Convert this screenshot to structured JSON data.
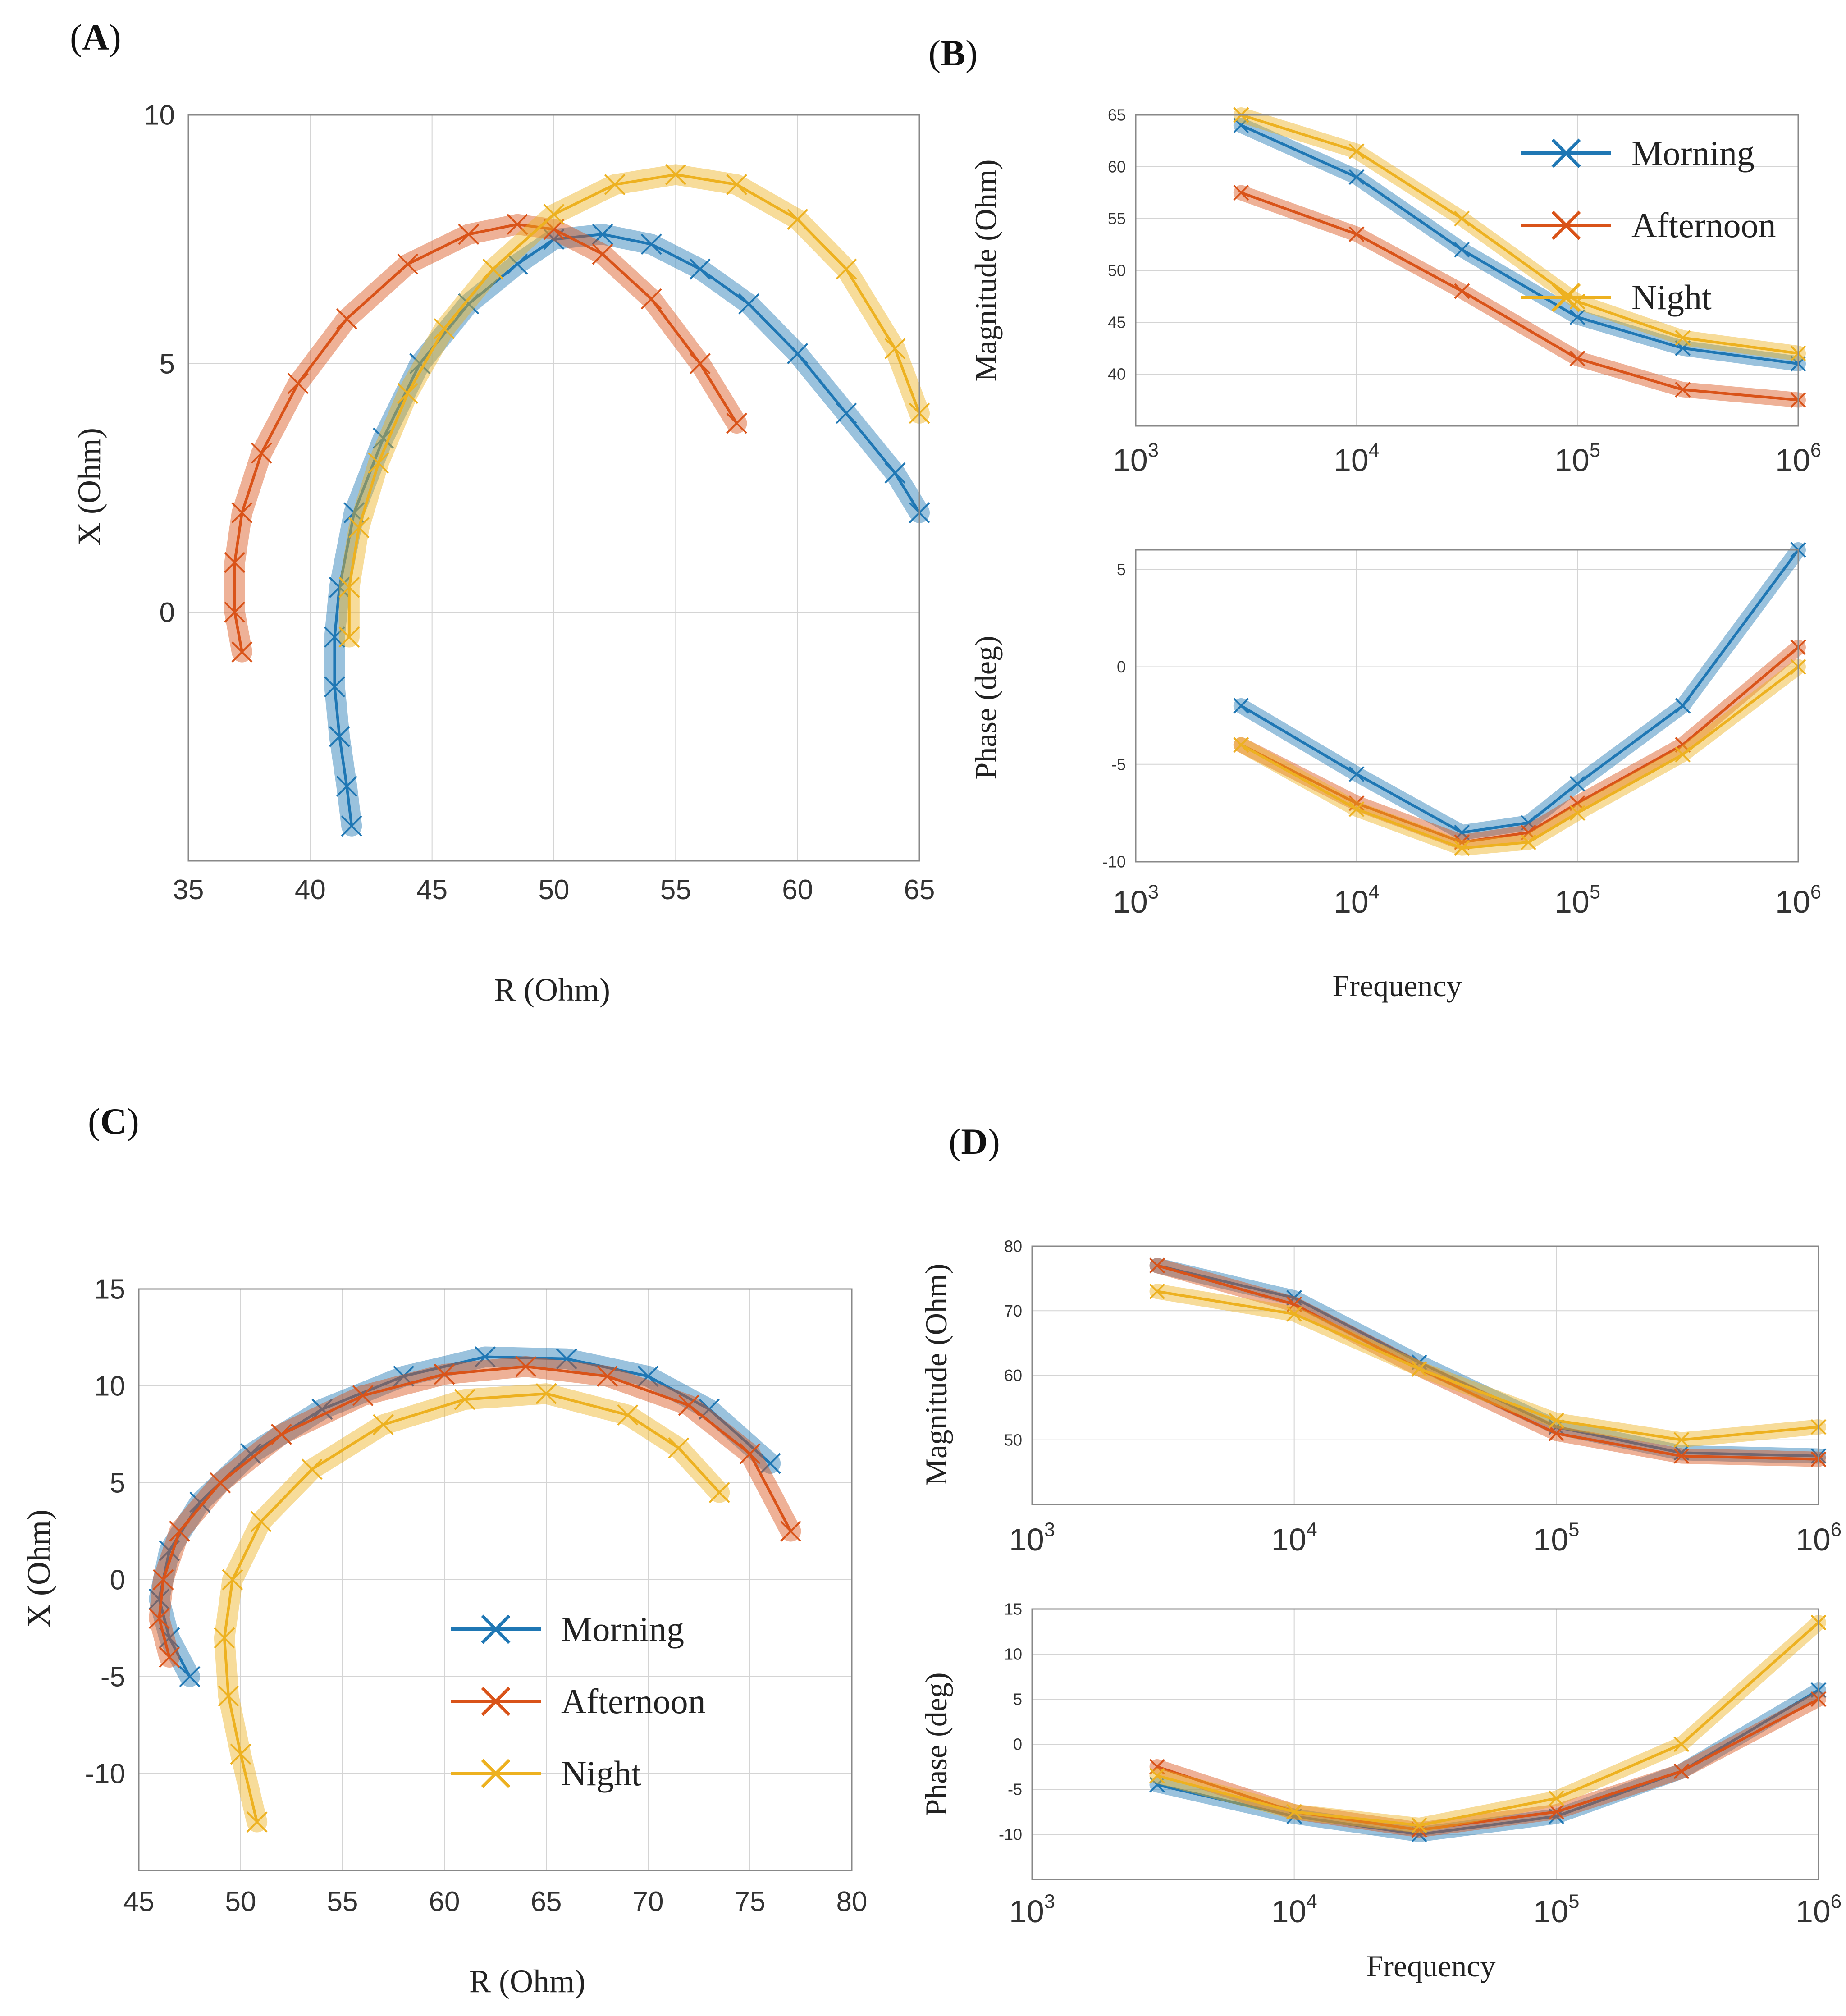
{
  "colors": {
    "morning": "#1f77b4",
    "afternoon": "#d95319",
    "night": "#edb120"
  },
  "panels": {
    "A": "A",
    "B": "B",
    "C": "C",
    "D": "D"
  },
  "chart_data": [
    {
      "id": "A",
      "type": "scatter",
      "title": "",
      "xlabel": "R (Ohm)",
      "ylabel": "X (Ohm)",
      "xlim": [
        35,
        65
      ],
      "ylim": [
        -5,
        10
      ],
      "xticks": [
        "35",
        "40",
        "45",
        "50",
        "55",
        "60",
        "65"
      ],
      "yticks": [
        "0",
        "5",
        "10"
      ],
      "series": [
        {
          "name": "Morning",
          "color": "#1f77b4",
          "x": [
            41.7,
            41.5,
            41.2,
            41,
            41,
            41.2,
            41.8,
            43,
            44.5,
            46.5,
            48.5,
            50,
            52,
            54,
            56,
            58,
            60,
            62,
            64,
            65
          ],
          "y": [
            -4.3,
            -3.5,
            -2.5,
            -1.5,
            -0.5,
            0.5,
            2,
            3.5,
            5,
            6.2,
            7,
            7.5,
            7.6,
            7.4,
            6.9,
            6.2,
            5.2,
            4,
            2.8,
            2
          ]
        },
        {
          "name": "Afternoon",
          "color": "#d95319",
          "x": [
            37.2,
            36.9,
            36.9,
            37.2,
            38,
            39.5,
            41.5,
            44,
            46.5,
            48.5,
            50,
            52,
            54,
            56,
            57.5
          ],
          "y": [
            -0.8,
            0,
            1,
            2,
            3.2,
            4.6,
            5.9,
            7,
            7.6,
            7.8,
            7.7,
            7.2,
            6.3,
            5,
            3.8
          ]
        },
        {
          "name": "Night",
          "color": "#edb120",
          "x": [
            41.6,
            41.6,
            42,
            42.8,
            44,
            45.5,
            47.5,
            50,
            52.5,
            55,
            57.5,
            60,
            62,
            64,
            65
          ],
          "y": [
            -0.5,
            0.5,
            1.7,
            3,
            4.4,
            5.7,
            6.9,
            8,
            8.6,
            8.8,
            8.6,
            7.9,
            6.9,
            5.3,
            4
          ]
        }
      ]
    },
    {
      "id": "B1",
      "type": "line",
      "xscale": "log",
      "xlabel": "",
      "ylabel": "Magnitude (Ohm)",
      "xlim": [
        1000,
        1000000
      ],
      "ylim": [
        35,
        65
      ],
      "xticks": [
        {
          "base": "10",
          "exp": "3"
        },
        {
          "base": "10",
          "exp": "4"
        },
        {
          "base": "10",
          "exp": "5"
        },
        {
          "base": "10",
          "exp": "6"
        }
      ],
      "yticks": [
        "40",
        "45",
        "50",
        "55",
        "60",
        "65"
      ],
      "legend": "top-right",
      "series": [
        {
          "name": "Morning",
          "color": "#1f77b4",
          "x": [
            3000,
            10000,
            30000,
            100000,
            300000,
            1000000
          ],
          "y": [
            64,
            59,
            52,
            45.5,
            42.5,
            41
          ]
        },
        {
          "name": "Afternoon",
          "color": "#d95319",
          "x": [
            3000,
            10000,
            30000,
            100000,
            300000,
            1000000
          ],
          "y": [
            57.5,
            53.5,
            48,
            41.5,
            38.5,
            37.5
          ]
        },
        {
          "name": "Night",
          "color": "#edb120",
          "x": [
            3000,
            10000,
            30000,
            100000,
            300000,
            1000000
          ],
          "y": [
            65,
            61.5,
            55,
            47,
            43.5,
            42
          ]
        }
      ]
    },
    {
      "id": "B2",
      "type": "line",
      "xscale": "log",
      "xlabel": "Frequency",
      "ylabel": "Phase (deg)",
      "xlim": [
        1000,
        1000000
      ],
      "ylim": [
        -10,
        6
      ],
      "xticks": [
        {
          "base": "10",
          "exp": "3"
        },
        {
          "base": "10",
          "exp": "4"
        },
        {
          "base": "10",
          "exp": "5"
        },
        {
          "base": "10",
          "exp": "6"
        }
      ],
      "yticks": [
        "-10",
        "-5",
        "0",
        "5"
      ],
      "series": [
        {
          "name": "Morning",
          "color": "#1f77b4",
          "x": [
            3000,
            10000,
            30000,
            60000,
            100000,
            300000,
            1000000
          ],
          "y": [
            -2,
            -5.5,
            -8.5,
            -8,
            -6,
            -2,
            6
          ]
        },
        {
          "name": "Afternoon",
          "color": "#d95319",
          "x": [
            3000,
            10000,
            30000,
            60000,
            100000,
            300000,
            1000000
          ],
          "y": [
            -4,
            -7,
            -9,
            -8.5,
            -7,
            -4,
            1
          ]
        },
        {
          "name": "Night",
          "color": "#edb120",
          "x": [
            3000,
            10000,
            30000,
            60000,
            100000,
            300000,
            1000000
          ],
          "y": [
            -4,
            -7.3,
            -9.3,
            -9,
            -7.5,
            -4.5,
            0
          ]
        }
      ]
    },
    {
      "id": "C",
      "type": "scatter",
      "title": "",
      "xlabel": "R (Ohm)",
      "ylabel": "X (Ohm)",
      "xlim": [
        45,
        80
      ],
      "ylim": [
        -15,
        15
      ],
      "xticks": [
        "45",
        "50",
        "55",
        "60",
        "65",
        "70",
        "75",
        "80"
      ],
      "yticks": [
        "-10",
        "-5",
        "0",
        "5",
        "10",
        "15"
      ],
      "legend": "lower-center",
      "series": [
        {
          "name": "Morning",
          "color": "#1f77b4",
          "x": [
            47.5,
            46.5,
            46,
            46.5,
            48,
            50.5,
            54,
            58,
            62,
            66,
            70,
            73,
            76
          ],
          "y": [
            -5,
            -3,
            -1,
            1.5,
            4,
            6.5,
            8.8,
            10.5,
            11.5,
            11.4,
            10.5,
            8.8,
            6
          ]
        },
        {
          "name": "Afternoon",
          "color": "#d95319",
          "x": [
            46.5,
            46,
            46.2,
            47,
            49,
            52,
            56,
            60,
            64,
            68,
            72,
            75,
            77
          ],
          "y": [
            -4,
            -2,
            0,
            2.5,
            5,
            7.5,
            9.5,
            10.6,
            11,
            10.5,
            9,
            6.5,
            2.5
          ]
        },
        {
          "name": "Night",
          "color": "#edb120",
          "x": [
            50.8,
            50,
            49.4,
            49.2,
            49.6,
            51,
            53.5,
            57,
            61,
            65,
            69,
            71.5,
            73.5
          ],
          "y": [
            -12.5,
            -9,
            -6,
            -3,
            0,
            3,
            5.7,
            8,
            9.3,
            9.6,
            8.5,
            6.8,
            4.5
          ]
        }
      ]
    },
    {
      "id": "D1",
      "type": "line",
      "xscale": "log",
      "xlabel": "",
      "ylabel": "Magnitude (Ohm)",
      "xlim": [
        1000,
        1000000
      ],
      "ylim": [
        40,
        80
      ],
      "xticks": [
        {
          "base": "10",
          "exp": "3"
        },
        {
          "base": "10",
          "exp": "4"
        },
        {
          "base": "10",
          "exp": "5"
        },
        {
          "base": "10",
          "exp": "6"
        }
      ],
      "yticks": [
        "50",
        "60",
        "70",
        "80"
      ],
      "series": [
        {
          "name": "Morning",
          "color": "#1f77b4",
          "x": [
            3000,
            10000,
            30000,
            100000,
            300000,
            1000000
          ],
          "y": [
            77,
            72,
            62,
            52,
            48,
            47.5
          ]
        },
        {
          "name": "Afternoon",
          "color": "#d95319",
          "x": [
            3000,
            10000,
            30000,
            100000,
            300000,
            1000000
          ],
          "y": [
            77,
            71,
            61,
            51,
            47.5,
            47
          ]
        },
        {
          "name": "Night",
          "color": "#edb120",
          "x": [
            3000,
            10000,
            30000,
            100000,
            300000,
            1000000
          ],
          "y": [
            73,
            69.5,
            61,
            53,
            50,
            52
          ]
        }
      ]
    },
    {
      "id": "D2",
      "type": "line",
      "xscale": "log",
      "xlabel": "Frequency",
      "ylabel": "Phase (deg)",
      "xlim": [
        1000,
        1000000
      ],
      "ylim": [
        -15,
        15
      ],
      "xticks": [
        {
          "base": "10",
          "exp": "3"
        },
        {
          "base": "10",
          "exp": "4"
        },
        {
          "base": "10",
          "exp": "5"
        },
        {
          "base": "10",
          "exp": "6"
        }
      ],
      "yticks": [
        "-10",
        "-5",
        "0",
        "5",
        "10",
        "15"
      ],
      "series": [
        {
          "name": "Morning",
          "color": "#1f77b4",
          "x": [
            3000,
            10000,
            30000,
            100000,
            300000,
            1000000
          ],
          "y": [
            -4.5,
            -8,
            -10,
            -8,
            -3,
            6
          ]
        },
        {
          "name": "Afternoon",
          "color": "#d95319",
          "x": [
            3000,
            10000,
            30000,
            100000,
            300000,
            1000000
          ],
          "y": [
            -2.5,
            -7.5,
            -9.5,
            -7.5,
            -3,
            5
          ]
        },
        {
          "name": "Night",
          "color": "#edb120",
          "x": [
            3000,
            10000,
            30000,
            100000,
            300000,
            1000000
          ],
          "y": [
            -3.5,
            -7.5,
            -9,
            -6,
            0,
            13.5
          ]
        }
      ]
    }
  ],
  "legend_entries": [
    "Morning",
    "Afternoon",
    "Night"
  ]
}
